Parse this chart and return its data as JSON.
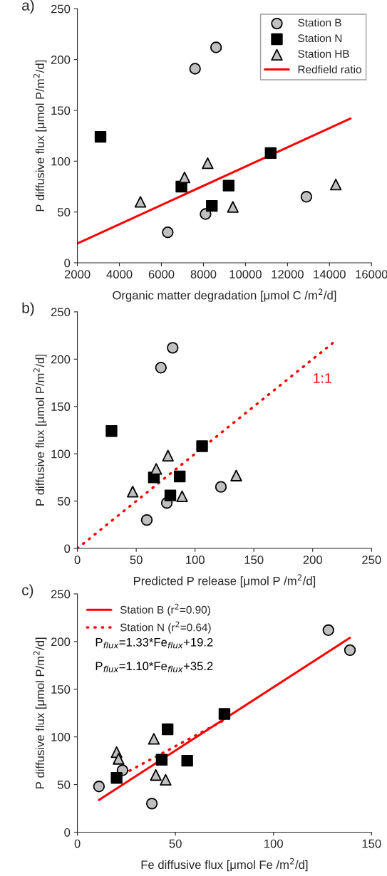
{
  "chart_data": [
    {
      "type": "scatter",
      "title": "a)",
      "xlabel": "Organic matter degradation [μmol C /m$^{2}$/d]",
      "ylabel": "P diffusive flux [μmol P/m$^{2}$/d]",
      "xlim": [
        2000,
        16000
      ],
      "xticks": [
        2000,
        4000,
        6000,
        8000,
        10000,
        12000,
        14000,
        16000
      ],
      "ylim": [
        0,
        250
      ],
      "yticks": [
        0,
        50,
        100,
        150,
        200,
        250
      ],
      "grid": false,
      "legend": "top right",
      "series": [
        {
          "name": "Station B",
          "marker": "circle",
          "color": "#c0c0c0",
          "x": [
            7600,
            8600,
            6300,
            8100,
            12900
          ],
          "values": [
            191,
            212,
            30,
            48,
            65
          ]
        },
        {
          "name": "Station N",
          "marker": "square",
          "color": "#000000",
          "x": [
            3100,
            6950,
            8400,
            9200,
            11200
          ],
          "values": [
            124,
            75,
            56,
            76,
            108
          ]
        },
        {
          "name": "Station HB",
          "marker": "triangle",
          "color": "#c0c0c0",
          "x": [
            5000,
            7100,
            8200,
            9400,
            14300
          ],
          "values": [
            60,
            84,
            98,
            55,
            77
          ]
        },
        {
          "name": "Redfield ratio",
          "type": "line",
          "line_style": "solid",
          "color": "#ff0000",
          "x": [
            2000,
            15000
          ],
          "values": [
            19,
            142
          ]
        }
      ]
    },
    {
      "type": "scatter",
      "title": "b)",
      "xlabel": "Predicted P release [μmol P /m$^{2}$/d]",
      "ylabel": "P diffusive flux [μmol P/m$^{2}$/d]",
      "xlim": [
        0,
        250
      ],
      "xticks": [
        0,
        50,
        100,
        150,
        200,
        250
      ],
      "ylim": [
        0,
        250
      ],
      "yticks": [
        0,
        50,
        100,
        150,
        200,
        250
      ],
      "grid": false,
      "annotations": [
        "1:1"
      ],
      "series": [
        {
          "marker": "circle",
          "color": "#c0c0c0",
          "x": [
            71,
            81,
            59,
            76,
            122
          ],
          "values": [
            191,
            212,
            30,
            48,
            65
          ]
        },
        {
          "marker": "square",
          "color": "#000000",
          "x": [
            29,
            65,
            87,
            79,
            106
          ],
          "values": [
            124,
            75,
            76,
            56,
            108
          ]
        },
        {
          "marker": "triangle",
          "color": "#c0c0c0",
          "x": [
            47,
            67,
            77,
            89,
            135
          ],
          "values": [
            60,
            84,
            98,
            55,
            77
          ]
        },
        {
          "type": "line",
          "line_style": "dotted",
          "color": "#ff0000",
          "x": [
            0,
            218
          ],
          "values": [
            0,
            218
          ]
        }
      ]
    },
    {
      "type": "scatter",
      "title": "c)",
      "xlabel": "Fe diffusive flux [μmol Fe /m$^{2}$/d]",
      "ylabel": "P diffusive flux [μmol P/m$^{2}$/d]",
      "xlim": [
        0,
        150
      ],
      "xticks": [
        0,
        50,
        100,
        150
      ],
      "ylim": [
        0,
        250
      ],
      "yticks": [
        0,
        50,
        100,
        150,
        200,
        250
      ],
      "grid": false,
      "legend": "top left",
      "annotations": [
        "P$_{flux}$=1.33*Fe$_{flux}$+19.2",
        "P$_{flux}$=1.10*Fe$_{flux}$+35.2"
      ],
      "series": [
        {
          "marker": "circle",
          "color": "#c0c0c0",
          "x": [
            11,
            38,
            23,
            128,
            139
          ],
          "values": [
            48,
            30,
            65,
            212,
            191
          ]
        },
        {
          "marker": "square",
          "color": "#000000",
          "x": [
            20,
            43,
            46,
            56,
            75
          ],
          "values": [
            57,
            76,
            108,
            75,
            124
          ]
        },
        {
          "marker": "triangle",
          "color": "#c0c0c0",
          "x": [
            20,
            21,
            39,
            40,
            45
          ],
          "values": [
            84,
            77,
            98,
            60,
            55
          ]
        },
        {
          "name": "Station B (r$^{2}$=0.90)",
          "type": "line",
          "line_style": "solid",
          "color": "#ff0000",
          "x": [
            11,
            139
          ],
          "values": [
            33.8,
            204
          ]
        },
        {
          "name": "Station N (r$^{2}$=0.64)",
          "type": "line",
          "line_style": "dotted",
          "color": "#ff0000",
          "x": [
            20,
            75
          ],
          "values": [
            57.2,
            117.7
          ]
        }
      ]
    }
  ]
}
